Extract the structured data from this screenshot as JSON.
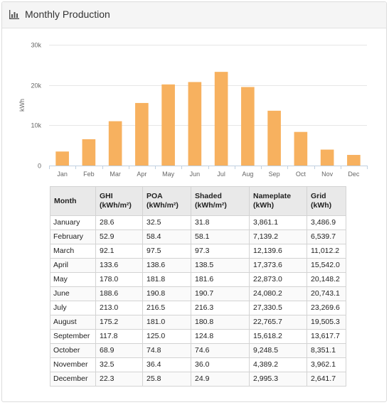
{
  "panel": {
    "title": "Monthly Production"
  },
  "chart_data": {
    "type": "bar",
    "categories": [
      "Jan",
      "Feb",
      "Mar",
      "Apr",
      "May",
      "Jun",
      "Jul",
      "Aug",
      "Sep",
      "Oct",
      "Nov",
      "Dec"
    ],
    "values": [
      3486.9,
      6539.7,
      11012.2,
      15542.0,
      20148.2,
      20743.1,
      23269.6,
      19505.3,
      13617.7,
      8351.1,
      3962.1,
      2641.7
    ],
    "ylabel": "kWh",
    "ylim": [
      0,
      30000
    ],
    "yticks": [
      0,
      10000,
      20000,
      30000
    ],
    "ytick_labels": [
      "0",
      "10k",
      "20k",
      "30k"
    ],
    "bar_color": "#f7b15f",
    "grid": true
  },
  "table": {
    "headers": [
      {
        "line1": "Month",
        "line2": ""
      },
      {
        "line1": "GHI",
        "line2": "(kWh/m²)"
      },
      {
        "line1": "POA",
        "line2": "(kWh/m²)"
      },
      {
        "line1": "Shaded",
        "line2": "(kWh/m²)"
      },
      {
        "line1": "Nameplate",
        "line2": "(kWh)"
      },
      {
        "line1": "Grid",
        "line2": "(kWh)"
      }
    ],
    "rows": [
      [
        "January",
        "28.6",
        "32.5",
        "31.8",
        "3,861.1",
        "3,486.9"
      ],
      [
        "February",
        "52.9",
        "58.4",
        "58.1",
        "7,139.2",
        "6,539.7"
      ],
      [
        "March",
        "92.1",
        "97.5",
        "97.3",
        "12,139.6",
        "11,012.2"
      ],
      [
        "April",
        "133.6",
        "138.6",
        "138.5",
        "17,373.6",
        "15,542.0"
      ],
      [
        "May",
        "178.0",
        "181.8",
        "181.6",
        "22,873.0",
        "20,148.2"
      ],
      [
        "June",
        "188.6",
        "190.8",
        "190.7",
        "24,080.2",
        "20,743.1"
      ],
      [
        "July",
        "213.0",
        "216.5",
        "216.3",
        "27,330.5",
        "23,269.6"
      ],
      [
        "August",
        "175.2",
        "181.0",
        "180.8",
        "22,765.7",
        "19,505.3"
      ],
      [
        "September",
        "117.8",
        "125.0",
        "124.8",
        "15,618.2",
        "13,617.7"
      ],
      [
        "October",
        "68.9",
        "74.8",
        "74.6",
        "9,248.5",
        "8,351.1"
      ],
      [
        "November",
        "32.5",
        "36.4",
        "36.0",
        "4,389.2",
        "3,962.1"
      ],
      [
        "December",
        "22.3",
        "25.8",
        "24.9",
        "2,995.3",
        "2,641.7"
      ]
    ]
  }
}
